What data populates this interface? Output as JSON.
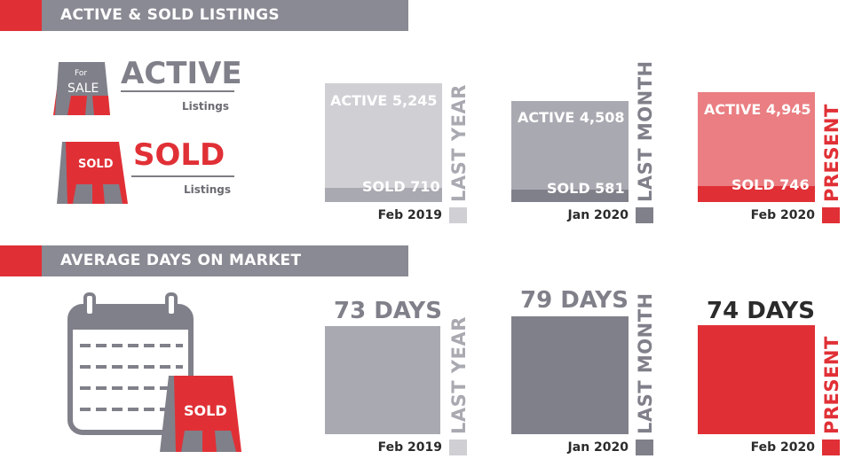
{
  "colors": {
    "red": "#e03036",
    "grey_dark": "#80808a",
    "grey_mid": "#a9a9b1",
    "grey_light": "#cfcfd4",
    "pink": "#ea7e82",
    "text_dark": "#2b2b2b"
  },
  "section1": {
    "title": "ACTIVE & SOLD LISTINGS"
  },
  "section2": {
    "title": "AVERAGE DAYS ON MARKET"
  },
  "legend": {
    "active_word": "ACTIVE",
    "active_sub": "Listings",
    "sold_word": "SOLD",
    "sold_sub": "Listings",
    "sign_for": "For",
    "sign_sale": "SALE",
    "sign_sold": "SOLD"
  },
  "calendar_sign": "SOLD",
  "listings": [
    {
      "active": "ACTIVE 5,245",
      "sold": "SOLD 710",
      "date": "Feb 2019",
      "period": "LAST YEAR"
    },
    {
      "active": "ACTIVE 4,508",
      "sold": "SOLD 581",
      "date": "Jan 2020",
      "period": "LAST MONTH"
    },
    {
      "active": "ACTIVE 4,945",
      "sold": "SOLD 746",
      "date": "Feb 2020",
      "period": "PRESENT"
    }
  ],
  "days": [
    {
      "label": "73 DAYS",
      "date": "Feb 2019",
      "period": "LAST YEAR"
    },
    {
      "label": "79 DAYS",
      "date": "Jan 2020",
      "period": "LAST MONTH"
    },
    {
      "label": "74 DAYS",
      "date": "Feb 2020",
      "period": "PRESENT"
    }
  ]
}
